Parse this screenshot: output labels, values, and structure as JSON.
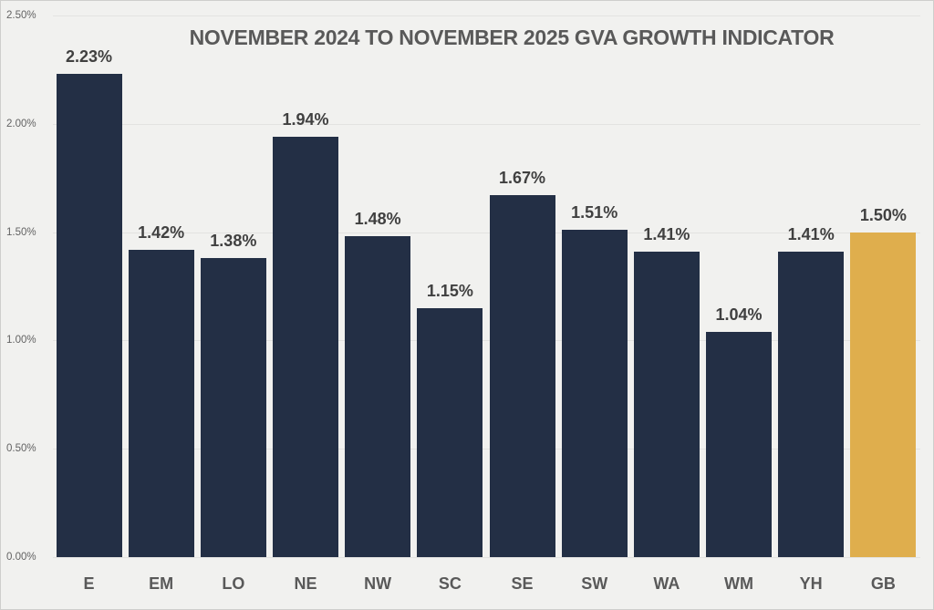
{
  "chart_data": {
    "type": "bar",
    "title": "NOVEMBER 2024 TO NOVEMBER 2025 GVA GROWTH INDICATOR",
    "categories": [
      "E",
      "EM",
      "LO",
      "NE",
      "NW",
      "SC",
      "SE",
      "SW",
      "WA",
      "WM",
      "YH",
      "GB"
    ],
    "values": [
      2.23,
      1.42,
      1.38,
      1.94,
      1.48,
      1.15,
      1.67,
      1.51,
      1.41,
      1.04,
      1.41,
      1.5
    ],
    "value_labels": [
      "2.23%",
      "1.42%",
      "1.38%",
      "1.94%",
      "1.48%",
      "1.15%",
      "1.67%",
      "1.51%",
      "1.41%",
      "1.04%",
      "1.41%",
      "1.50%"
    ],
    "highlight_category": "GB",
    "xlabel": "",
    "ylabel": "",
    "ylim": [
      0,
      2.5
    ],
    "ytick_values": [
      0,
      0.5,
      1.0,
      1.5,
      2.0,
      2.5
    ],
    "ytick_labels": [
      "0.00%",
      "0.50%",
      "1.00%",
      "1.50%",
      "2.00%",
      "2.50%"
    ],
    "grid": true,
    "legend_position": "none",
    "colors": {
      "bar": "#232f45",
      "highlight_bar": "#dfae4d",
      "background": "#f1f1ef",
      "gridline": "#e3e3e1",
      "title_text": "#595959",
      "axis_text": "#636363",
      "value_label_text": "#404040"
    }
  }
}
